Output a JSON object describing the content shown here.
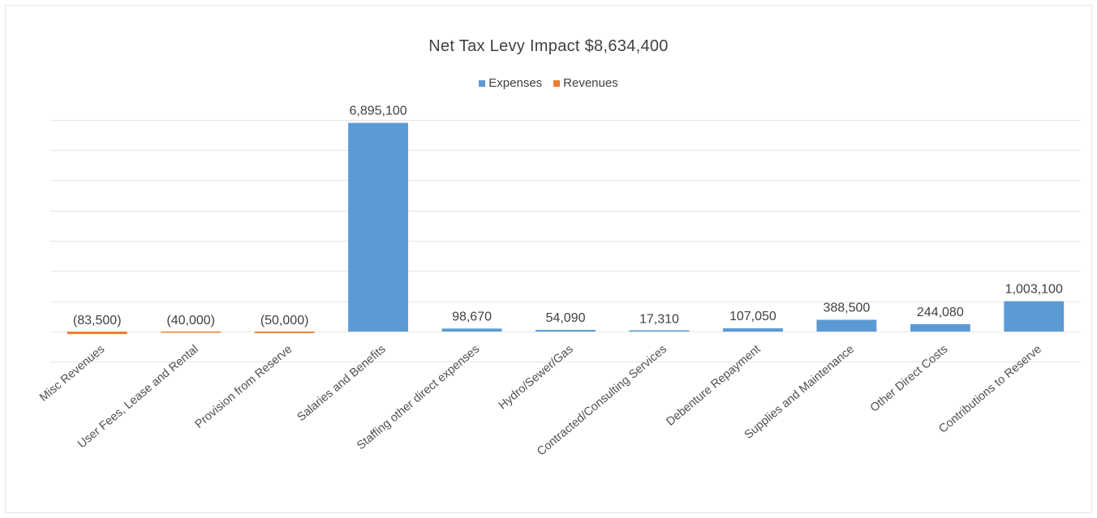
{
  "chart_data": {
    "type": "bar",
    "title": "Net Tax Levy Impact $8,634,400",
    "xlabel": "",
    "ylabel": "",
    "ylim": [
      -500000,
      7500000
    ],
    "grid": true,
    "legend_position": "top",
    "categories": [
      "Misc Revenues",
      "User Fees, Lease and Rental",
      "Provision from Reserve",
      "Salaries and Benefits",
      "Staffing other direct expenses",
      "Hydro/Sewer/Gas",
      "Contracted/Consulting Services",
      "Debenture Repayment",
      "Supplies and Maintenance",
      "Other Direct Costs",
      "Contributions to Reserve"
    ],
    "series": [
      {
        "name": "Expenses",
        "color": "#5b9bd5",
        "values": [
          null,
          null,
          null,
          6895100,
          98670,
          54090,
          17310,
          107050,
          388500,
          244080,
          1003100
        ]
      },
      {
        "name": "Revenues",
        "color": "#ed7d31",
        "values": [
          -83500,
          -40000,
          -50000,
          null,
          null,
          null,
          null,
          null,
          null,
          null,
          null
        ]
      }
    ],
    "data_labels": [
      "(83,500)",
      "(40,000)",
      "(50,000)",
      "6,895,100",
      "98,670",
      "54,090",
      "17,310",
      "107,050",
      "388,500",
      "244,080",
      "1,003,100"
    ]
  }
}
